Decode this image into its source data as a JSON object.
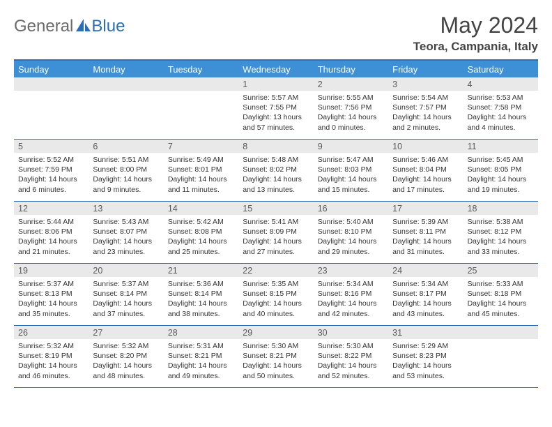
{
  "brand": {
    "general": "General",
    "blue": "Blue"
  },
  "title": "May 2024",
  "location": "Teora, Campania, Italy",
  "colors": {
    "header_bg": "#3d8fd6",
    "border": "#2a6fb5",
    "daynum_bg": "#e9e9e9",
    "text": "#333333",
    "logo_gray": "#6a6a6a",
    "logo_blue": "#2a6fb5"
  },
  "day_headers": [
    "Sunday",
    "Monday",
    "Tuesday",
    "Wednesday",
    "Thursday",
    "Friday",
    "Saturday"
  ],
  "weeks": [
    [
      null,
      null,
      null,
      {
        "n": "1",
        "sr": "5:57 AM",
        "ss": "7:55 PM",
        "dl": "13 hours and 57 minutes."
      },
      {
        "n": "2",
        "sr": "5:55 AM",
        "ss": "7:56 PM",
        "dl": "14 hours and 0 minutes."
      },
      {
        "n": "3",
        "sr": "5:54 AM",
        "ss": "7:57 PM",
        "dl": "14 hours and 2 minutes."
      },
      {
        "n": "4",
        "sr": "5:53 AM",
        "ss": "7:58 PM",
        "dl": "14 hours and 4 minutes."
      }
    ],
    [
      {
        "n": "5",
        "sr": "5:52 AM",
        "ss": "7:59 PM",
        "dl": "14 hours and 6 minutes."
      },
      {
        "n": "6",
        "sr": "5:51 AM",
        "ss": "8:00 PM",
        "dl": "14 hours and 9 minutes."
      },
      {
        "n": "7",
        "sr": "5:49 AM",
        "ss": "8:01 PM",
        "dl": "14 hours and 11 minutes."
      },
      {
        "n": "8",
        "sr": "5:48 AM",
        "ss": "8:02 PM",
        "dl": "14 hours and 13 minutes."
      },
      {
        "n": "9",
        "sr": "5:47 AM",
        "ss": "8:03 PM",
        "dl": "14 hours and 15 minutes."
      },
      {
        "n": "10",
        "sr": "5:46 AM",
        "ss": "8:04 PM",
        "dl": "14 hours and 17 minutes."
      },
      {
        "n": "11",
        "sr": "5:45 AM",
        "ss": "8:05 PM",
        "dl": "14 hours and 19 minutes."
      }
    ],
    [
      {
        "n": "12",
        "sr": "5:44 AM",
        "ss": "8:06 PM",
        "dl": "14 hours and 21 minutes."
      },
      {
        "n": "13",
        "sr": "5:43 AM",
        "ss": "8:07 PM",
        "dl": "14 hours and 23 minutes."
      },
      {
        "n": "14",
        "sr": "5:42 AM",
        "ss": "8:08 PM",
        "dl": "14 hours and 25 minutes."
      },
      {
        "n": "15",
        "sr": "5:41 AM",
        "ss": "8:09 PM",
        "dl": "14 hours and 27 minutes."
      },
      {
        "n": "16",
        "sr": "5:40 AM",
        "ss": "8:10 PM",
        "dl": "14 hours and 29 minutes."
      },
      {
        "n": "17",
        "sr": "5:39 AM",
        "ss": "8:11 PM",
        "dl": "14 hours and 31 minutes."
      },
      {
        "n": "18",
        "sr": "5:38 AM",
        "ss": "8:12 PM",
        "dl": "14 hours and 33 minutes."
      }
    ],
    [
      {
        "n": "19",
        "sr": "5:37 AM",
        "ss": "8:13 PM",
        "dl": "14 hours and 35 minutes."
      },
      {
        "n": "20",
        "sr": "5:37 AM",
        "ss": "8:14 PM",
        "dl": "14 hours and 37 minutes."
      },
      {
        "n": "21",
        "sr": "5:36 AM",
        "ss": "8:14 PM",
        "dl": "14 hours and 38 minutes."
      },
      {
        "n": "22",
        "sr": "5:35 AM",
        "ss": "8:15 PM",
        "dl": "14 hours and 40 minutes."
      },
      {
        "n": "23",
        "sr": "5:34 AM",
        "ss": "8:16 PM",
        "dl": "14 hours and 42 minutes."
      },
      {
        "n": "24",
        "sr": "5:34 AM",
        "ss": "8:17 PM",
        "dl": "14 hours and 43 minutes."
      },
      {
        "n": "25",
        "sr": "5:33 AM",
        "ss": "8:18 PM",
        "dl": "14 hours and 45 minutes."
      }
    ],
    [
      {
        "n": "26",
        "sr": "5:32 AM",
        "ss": "8:19 PM",
        "dl": "14 hours and 46 minutes."
      },
      {
        "n": "27",
        "sr": "5:32 AM",
        "ss": "8:20 PM",
        "dl": "14 hours and 48 minutes."
      },
      {
        "n": "28",
        "sr": "5:31 AM",
        "ss": "8:21 PM",
        "dl": "14 hours and 49 minutes."
      },
      {
        "n": "29",
        "sr": "5:30 AM",
        "ss": "8:21 PM",
        "dl": "14 hours and 50 minutes."
      },
      {
        "n": "30",
        "sr": "5:30 AM",
        "ss": "8:22 PM",
        "dl": "14 hours and 52 minutes."
      },
      {
        "n": "31",
        "sr": "5:29 AM",
        "ss": "8:23 PM",
        "dl": "14 hours and 53 minutes."
      },
      null
    ]
  ],
  "labels": {
    "sunrise": "Sunrise:",
    "sunset": "Sunset:",
    "daylight": "Daylight:"
  }
}
